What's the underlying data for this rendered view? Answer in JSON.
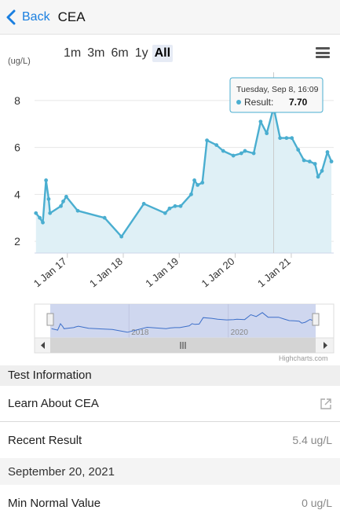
{
  "header": {
    "back_label": "Back",
    "title": "CEA"
  },
  "range_selector": {
    "options": [
      "1m",
      "3m",
      "6m",
      "1y",
      "All"
    ],
    "selected": "All"
  },
  "chart_data": {
    "type": "area",
    "ylabel": "(ug/L)",
    "ylim": [
      1.5,
      9.2
    ],
    "yticks": [
      2,
      4,
      6,
      8
    ],
    "xticks": [
      "1 Jan 17",
      "1 Jan 18",
      "1 Jan 19",
      "1 Jan 20",
      "1 Jan 21"
    ],
    "series": [
      {
        "name": "Result",
        "points": [
          [
            "2016-06-10",
            3.2
          ],
          [
            "2016-07-05",
            3.0
          ],
          [
            "2016-07-25",
            2.8
          ],
          [
            "2016-08-15",
            4.6
          ],
          [
            "2016-09-01",
            3.8
          ],
          [
            "2016-09-10",
            3.2
          ],
          [
            "2016-11-20",
            3.5
          ],
          [
            "2016-12-05",
            3.7
          ],
          [
            "2016-12-25",
            3.9
          ],
          [
            "2017-03-10",
            3.3
          ],
          [
            "2017-09-01",
            3.0
          ],
          [
            "2017-12-20",
            2.2
          ],
          [
            "2018-05-15",
            3.6
          ],
          [
            "2018-10-01",
            3.2
          ],
          [
            "2018-10-30",
            3.4
          ],
          [
            "2018-12-05",
            3.5
          ],
          [
            "2019-01-10",
            3.5
          ],
          [
            "2019-03-20",
            4.0
          ],
          [
            "2019-04-10",
            4.6
          ],
          [
            "2019-05-01",
            4.4
          ],
          [
            "2019-06-01",
            4.5
          ],
          [
            "2019-07-01",
            6.3
          ],
          [
            "2019-09-01",
            6.1
          ],
          [
            "2019-10-15",
            5.85
          ],
          [
            "2019-12-20",
            5.65
          ],
          [
            "2020-02-10",
            5.75
          ],
          [
            "2020-03-05",
            5.85
          ],
          [
            "2020-05-01",
            5.75
          ],
          [
            "2020-06-15",
            7.1
          ],
          [
            "2020-07-25",
            6.6
          ],
          [
            "2020-09-08",
            7.7
          ],
          [
            "2020-10-20",
            6.4
          ],
          [
            "2020-12-01",
            6.4
          ],
          [
            "2021-01-05",
            6.4
          ],
          [
            "2021-02-15",
            5.9
          ],
          [
            "2021-03-25",
            5.45
          ],
          [
            "2021-05-01",
            5.4
          ],
          [
            "2021-06-05",
            5.3
          ],
          [
            "2021-06-25",
            4.75
          ],
          [
            "2021-07-20",
            5.0
          ],
          [
            "2021-08-25",
            5.8
          ],
          [
            "2021-09-20",
            5.4
          ]
        ]
      }
    ],
    "tooltip": {
      "date": "Tuesday, Sep 8, 16:09",
      "label": "Result:",
      "value": "7.70"
    },
    "navigator": {
      "labels": [
        "2018",
        "2020"
      ]
    },
    "credits": "Highcharts.com"
  },
  "test_info": {
    "header": "Test Information",
    "learn_label": "Learn About CEA",
    "recent_label": "Recent Result",
    "recent_value": "5.4 ug/L",
    "recent_date": "September 20, 2021",
    "min_label": "Min Normal Value",
    "min_value": "0 ug/L"
  },
  "colors": {
    "accent": "#1a7fe0",
    "line": "#4aaed0",
    "fill": "#dff0f6",
    "navigator_bg": "#c7d0ec"
  }
}
